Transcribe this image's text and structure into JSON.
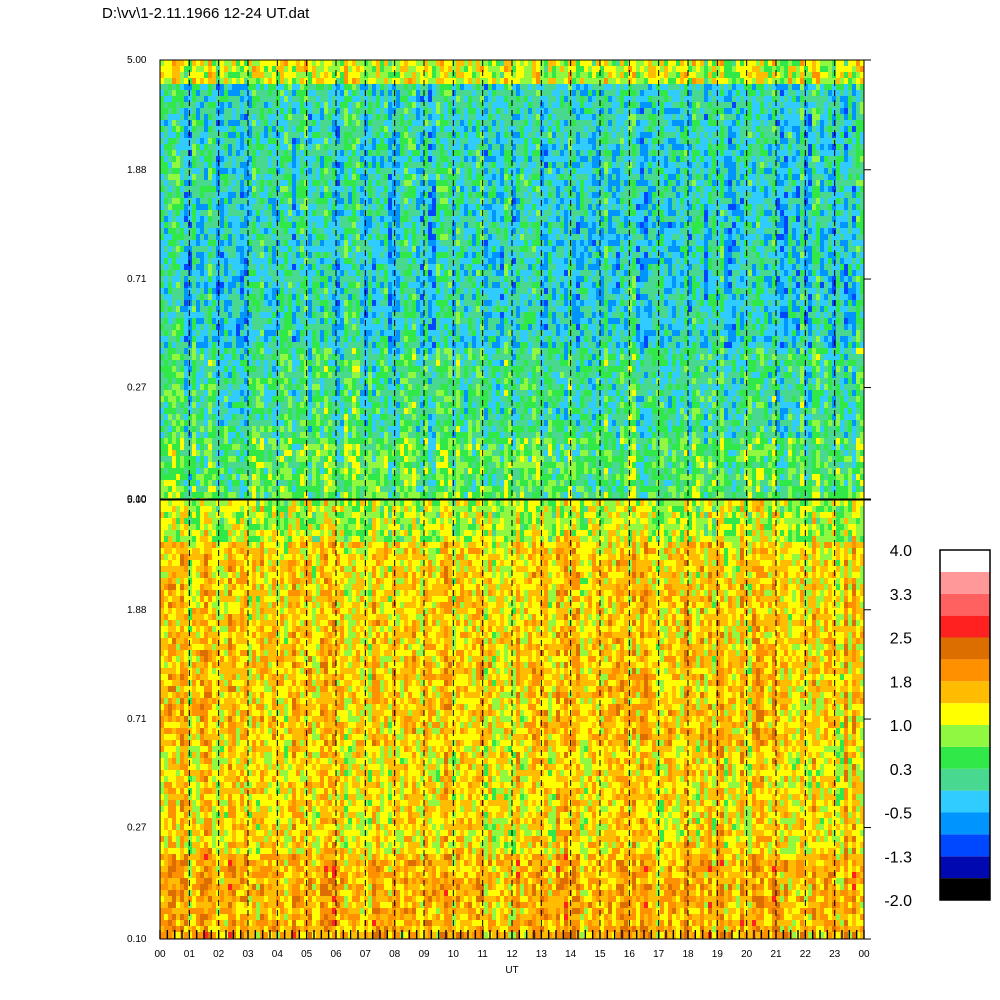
{
  "title": "D:\\vv\\1-2.11.1966  12-24 UT.dat",
  "colors": {
    "colormap": [
      "#000000",
      "#0008b0",
      "#0048ff",
      "#0094ff",
      "#30ccff",
      "#48d890",
      "#30e848",
      "#90f840",
      "#ffff00",
      "#ffbc00",
      "#ff9000",
      "#dc6e00",
      "#ff2020",
      "#ff6060",
      "#ff9898",
      "#ffffff"
    ]
  },
  "chart_data": [
    {
      "type": "heatmap",
      "panel": "upper",
      "xlabel": "UT",
      "x_tick_labels": [
        "00",
        "01",
        "02",
        "03",
        "04",
        "05",
        "06",
        "07",
        "08",
        "09",
        "10",
        "11",
        "12",
        "13",
        "14",
        "15",
        "16",
        "17",
        "18",
        "19",
        "20",
        "21",
        "22",
        "23",
        "00"
      ],
      "y_tick_labels": [
        "0.10",
        "0.27",
        "0.71",
        "1.88",
        "5.00"
      ],
      "y_scale": "log",
      "ylim": [
        0.1,
        5.0
      ],
      "dominant_levels": "-1.3 to 1.0 (blue-green)"
    },
    {
      "type": "heatmap",
      "panel": "lower",
      "xlabel": "UT",
      "x_tick_labels": [
        "00",
        "01",
        "02",
        "03",
        "04",
        "05",
        "06",
        "07",
        "08",
        "09",
        "10",
        "11",
        "12",
        "13",
        "14",
        "15",
        "16",
        "17",
        "18",
        "19",
        "20",
        "21",
        "22",
        "23",
        "00"
      ],
      "y_tick_labels": [
        "0.10",
        "0.27",
        "0.71",
        "1.88",
        "5.00"
      ],
      "y_scale": "log",
      "ylim": [
        0.1,
        5.0
      ],
      "dominant_levels": "0.3 to 2.5 (green-yellow-orange)"
    }
  ],
  "colorbar": {
    "labels": [
      "4.0",
      "3.3",
      "2.5",
      "1.8",
      "1.0",
      "0.3",
      "-0.5",
      "-1.3",
      "-2.0"
    ]
  }
}
